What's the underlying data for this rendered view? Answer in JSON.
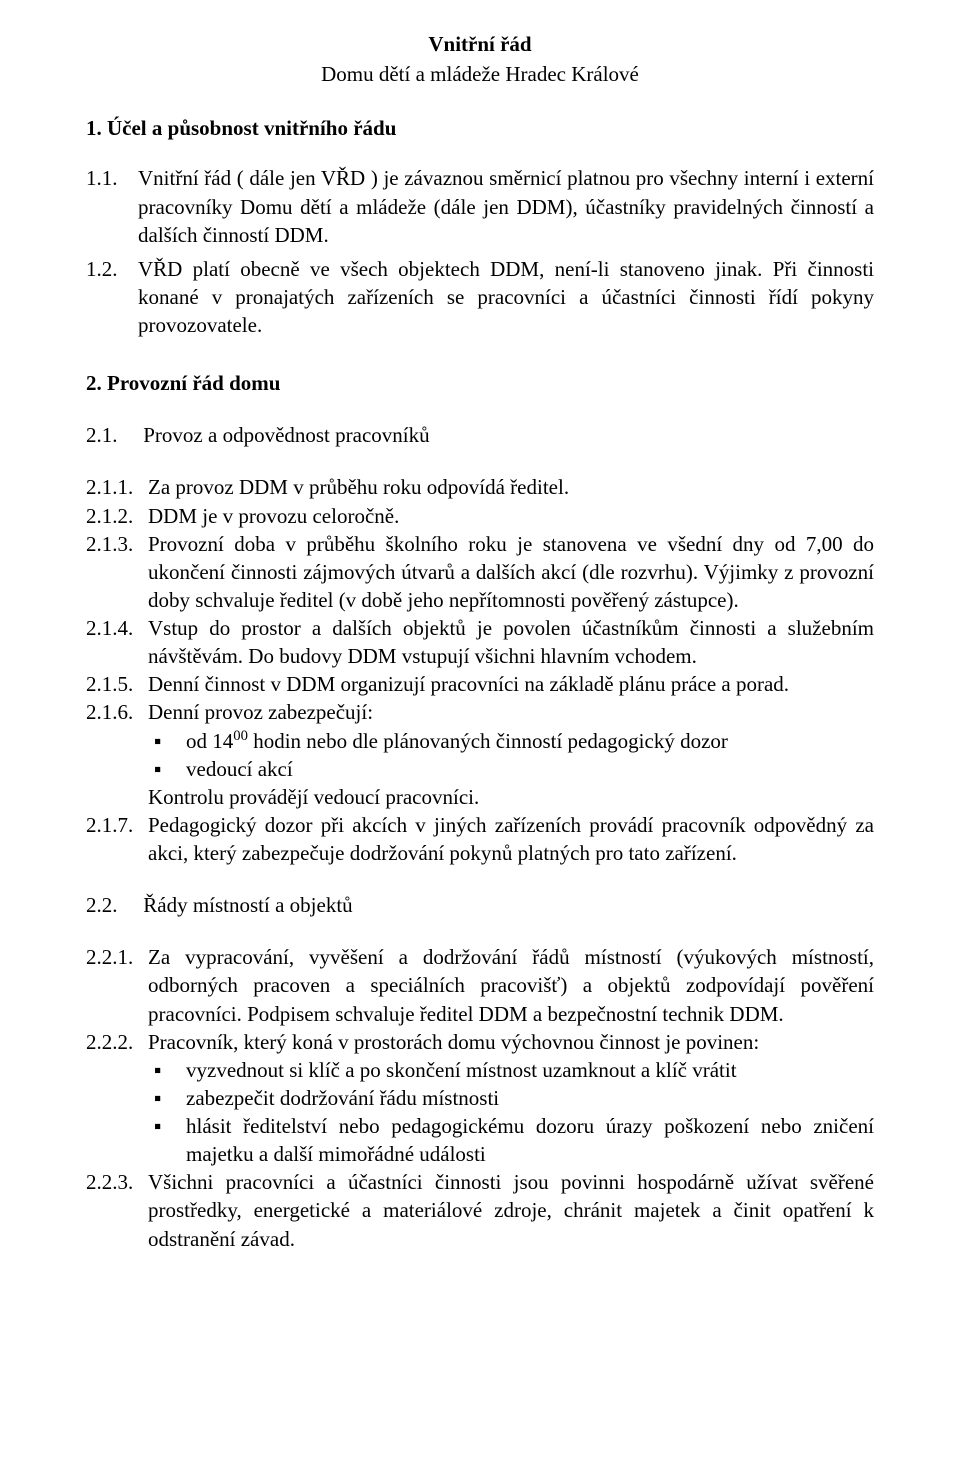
{
  "title": {
    "main": "Vnitřní řád",
    "sub": "Domu dětí a mládeže  Hradec Králové"
  },
  "section1": {
    "heading": "1. Účel a působnost vnitřního řádu",
    "paras": [
      {
        "num": "1.1.",
        "text": "Vnitřní řád ( dále jen VŘD ) je závaznou směrnicí platnou pro všechny interní i externí pracovníky Domu dětí a mládeže (dále jen DDM), účastníky pravidelných činností a dalších činností DDM."
      },
      {
        "num": "1.2.",
        "text": "VŘD platí obecně ve všech objektech DDM, není-li stanoveno jinak. Při činnosti konané v pronajatých zařízeních se pracovníci a účastníci činnosti řídí pokyny provozovatele."
      }
    ]
  },
  "section2": {
    "heading": "2. Provozní řád domu",
    "sub21": {
      "num": "2.1.",
      "label": "Provoz a odpovědnost pracovníků",
      "items": [
        {
          "num": "2.1.1.",
          "text": "Za provoz DDM v průběhu roku odpovídá ředitel."
        },
        {
          "num": "2.1.2.",
          "text": "DDM je v provozu celoročně."
        },
        {
          "num": "2.1.3.",
          "text": "Provozní doba v průběhu školního roku je stanovena ve všední dny od 7,00 do ukončení činnosti zájmových útvarů a dalších akcí (dle rozvrhu). Výjimky z provozní doby schvaluje ředitel   (v době jeho nepřítomnosti pověřený zástupce)."
        },
        {
          "num": "2.1.4.",
          "text": "Vstup do prostor a dalších objektů je povolen účastníkům činnosti a služebním návštěvám. Do budovy DDM vstupují všichni hlavním vchodem."
        },
        {
          "num": "2.1.5.",
          "text": "Denní činnost v DDM organizují pracovníci na základě plánu práce a porad."
        },
        {
          "num": "2.1.6.",
          "text": "Denní provoz zabezpečují:",
          "time_pre": "od 14",
          "time_sup": "00",
          "time_post": " hodin nebo dle plánovaných činností pedagogický dozor",
          "bullet2": "vedoucí akcí",
          "cont": "Kontrolu provádějí vedoucí pracovníci."
        },
        {
          "num": "2.1.7.",
          "text": "Pedagogický dozor při akcích v jiných zařízeních provádí pracovník odpovědný za akci, který zabezpečuje dodržování pokynů platných pro tato zařízení."
        }
      ]
    },
    "sub22": {
      "num": "2.2.",
      "label": "Řády místností a objektů",
      "items": [
        {
          "num": "2.2.1.",
          "text": "Za vypracování, vyvěšení a dodržování řádů místností (výukových místností, odborných pracoven a speciálních pracovišť) a objektů zodpovídají pověření pracovníci. Podpisem schvaluje ředitel DDM a bezpečnostní technik DDM."
        },
        {
          "num": "2.2.2.",
          "text": "Pracovník, který koná v prostorách domu výchovnou činnost je povinen:",
          "bullets": [
            "vyzvednout si klíč a po skončení místnost uzamknout a klíč vrátit",
            "zabezpečit dodržování řádu místnosti",
            "hlásit ředitelství nebo pedagogickému dozoru úrazy poškození nebo zničení majetku a další mimořádné události"
          ]
        },
        {
          "num": "2.2.3.",
          "text": "Všichni pracovníci a účastníci činnosti jsou povinni hospodárně užívat svěřené prostředky, energetické a materiálové zdroje, chránit majetek a činit opatření k odstranění závad."
        }
      ]
    }
  },
  "style": {
    "bg": "#ffffff",
    "color": "#000000",
    "font": "Times New Roman",
    "base_fontsize": 21
  }
}
